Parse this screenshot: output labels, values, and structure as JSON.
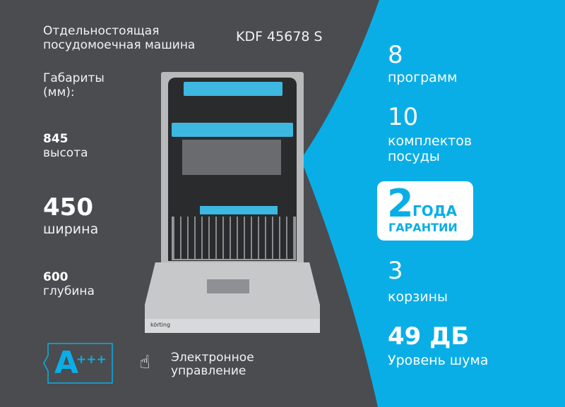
{
  "colors": {
    "background": "#4a4c50",
    "accent": "#0aaee6",
    "badge_text": "#0aaee6"
  },
  "header": {
    "product_type": "Отдельностоящая посудомоечная машина",
    "model": "KDF 45678 S"
  },
  "dimensions": {
    "label": "Габариты (мм):",
    "height": {
      "value": "845",
      "label": "высота"
    },
    "width": {
      "value": "450",
      "label": "ширина"
    },
    "depth": {
      "value": "600",
      "label": "глубина"
    }
  },
  "energy_class": {
    "letter": "A",
    "plus": "+++"
  },
  "control": {
    "icon": "touch-hand-icon",
    "label_line1": "Электронное",
    "label_line2": "управление"
  },
  "features": [
    {
      "value": "8",
      "label": "программ"
    },
    {
      "value": "10",
      "label": "комплектов посуды"
    },
    {
      "value": "3",
      "label": "корзины"
    },
    {
      "value": "49 ДБ",
      "label": "Уровень шума"
    }
  ],
  "warranty": {
    "number": "2",
    "line1": "ГОДА",
    "line2": "ГАРАНТИИ"
  },
  "product_image": {
    "brand": "körting"
  }
}
